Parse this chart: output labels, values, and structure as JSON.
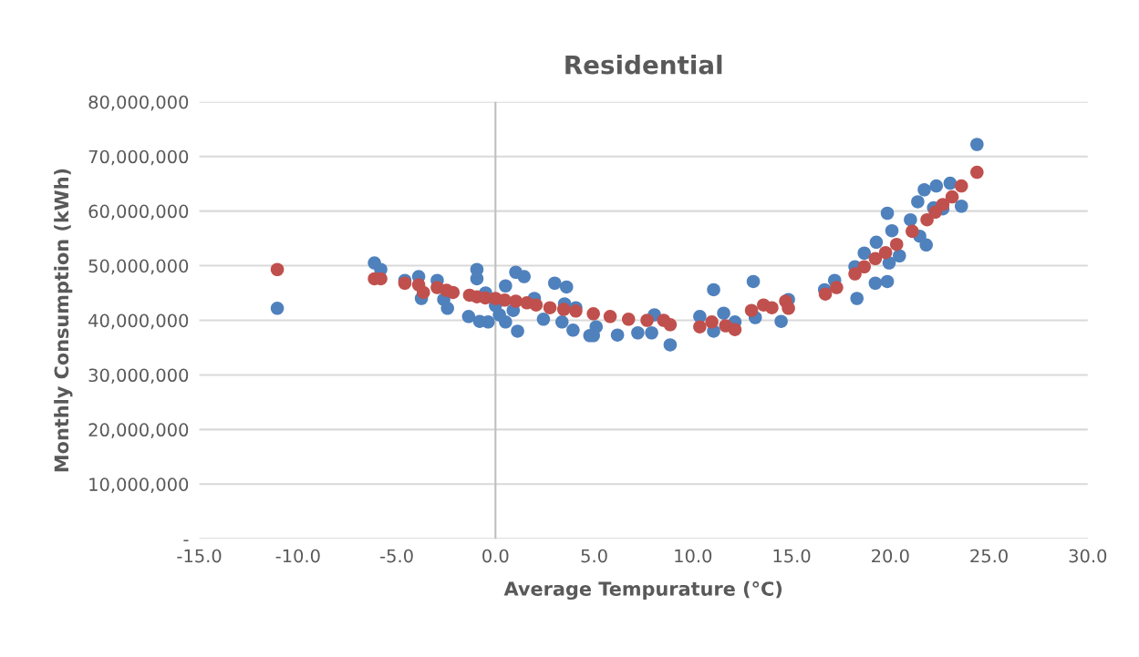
{
  "chart_data": {
    "type": "scatter",
    "title": "Residential",
    "xlabel": "Average Tempurature (°C)",
    "ylabel": "Monthly Consumption (kWh)",
    "xlim": [
      -15,
      30
    ],
    "ylim": [
      0,
      80000000
    ],
    "xticks": [
      {
        "value": -15,
        "label": "-15.0"
      },
      {
        "value": -10,
        "label": "-10.0"
      },
      {
        "value": -5,
        "label": "-5.0"
      },
      {
        "value": 0,
        "label": "0.0"
      },
      {
        "value": 5,
        "label": "5.0"
      },
      {
        "value": 10,
        "label": "10.0"
      },
      {
        "value": 15,
        "label": "15.0"
      },
      {
        "value": 20,
        "label": "20.0"
      },
      {
        "value": 25,
        "label": "25.0"
      },
      {
        "value": 30,
        "label": "30.0"
      }
    ],
    "yticks": [
      {
        "value": 0,
        "label": "-"
      },
      {
        "value": 10000000,
        "label": "10,000,000"
      },
      {
        "value": 20000000,
        "label": "20,000,000"
      },
      {
        "value": 30000000,
        "label": "30,000,000"
      },
      {
        "value": 40000000,
        "label": "40,000,000"
      },
      {
        "value": 50000000,
        "label": "50,000,000"
      },
      {
        "value": 60000000,
        "label": "60,000,000"
      },
      {
        "value": 70000000,
        "label": "70,000,000"
      },
      {
        "value": 80000000,
        "label": "80,000,000"
      }
    ],
    "grid": "y",
    "marker": "circle",
    "ref_lines": [
      {
        "axis": "x",
        "value": 0,
        "color": "#bfbfbf"
      }
    ],
    "series": [
      {
        "color": "#4f81bd",
        "x": [
          -11.05,
          -6.13,
          -5.81,
          -4.59,
          -3.89,
          -3.75,
          -2.95,
          -2.62,
          -2.43,
          -1.36,
          -0.94,
          -0.94,
          -0.8,
          -0.37,
          0.51,
          0.51,
          1.03,
          1.45,
          1.12,
          1.97,
          2.43,
          3.0,
          3.6,
          3.37,
          3.93,
          4.78,
          0.0,
          0.2,
          0.9,
          3.5,
          -0.5,
          4.07,
          4.96,
          5.1,
          6.18,
          7.21,
          7.91,
          8.05,
          8.85,
          11.05,
          10.35,
          11.05,
          11.56,
          12.13,
          13.06,
          13.16,
          14.47,
          14.84,
          24.39,
          17.18,
          16.67,
          18.31,
          18.21,
          19.24,
          19.85,
          18.68,
          19.29,
          19.85,
          20.08,
          20.46,
          19.94,
          21.02,
          21.39,
          21.72,
          22.33,
          23.03,
          23.6,
          21.82,
          21.49,
          22.66,
          22.19
        ],
        "values": [
          42200000,
          50500000,
          49300000,
          47300000,
          48000000,
          44000000,
          47300000,
          43800000,
          42200000,
          40700000,
          49300000,
          47600000,
          39800000,
          39700000,
          46300000,
          39700000,
          48800000,
          48000000,
          38000000,
          44000000,
          40200000,
          46800000,
          46100000,
          39700000,
          38200000,
          37200000,
          42700000,
          41000000,
          41800000,
          43000000,
          45000000,
          42300000,
          37200000,
          38800000,
          37300000,
          37700000,
          37700000,
          41000000,
          35500000,
          45600000,
          40700000,
          38000000,
          41300000,
          39700000,
          47100000,
          40500000,
          39800000,
          43800000,
          72200000,
          47300000,
          45600000,
          44000000,
          49800000,
          46800000,
          47100000,
          52300000,
          54300000,
          59600000,
          56400000,
          51800000,
          50500000,
          58400000,
          61700000,
          63900000,
          64600000,
          65100000,
          60900000,
          53800000,
          55400000,
          60400000,
          60600000
        ]
      },
      {
        "color": "#c0504d",
        "x": [
          -11.05,
          -6.13,
          -5.81,
          -4.59,
          -3.89,
          -3.65,
          -2.95,
          -2.48,
          -2.15,
          -1.31,
          -0.94,
          -0.51,
          0.0,
          0.47,
          1.03,
          1.59,
          2.06,
          2.76,
          3.46,
          4.07,
          4.96,
          5.81,
          6.74,
          7.68,
          8.52,
          8.85,
          10.35,
          10.96,
          11.66,
          12.13,
          12.97,
          13.58,
          14.0,
          14.7,
          14.84,
          16.71,
          17.28,
          18.21,
          18.68,
          19.24,
          19.76,
          20.32,
          21.11,
          21.86,
          22.28,
          22.66,
          23.13,
          23.6,
          24.39
        ],
        "values": [
          49300000,
          47600000,
          47600000,
          46800000,
          46500000,
          45100000,
          46000000,
          45500000,
          45100000,
          44600000,
          44300000,
          44100000,
          44000000,
          43700000,
          43500000,
          43200000,
          42800000,
          42300000,
          42000000,
          41700000,
          41200000,
          40700000,
          40200000,
          40000000,
          40000000,
          39200000,
          38800000,
          39700000,
          39000000,
          38300000,
          41800000,
          42800000,
          42300000,
          43500000,
          42200000,
          44800000,
          46000000,
          48500000,
          49800000,
          51300000,
          52400000,
          53900000,
          56300000,
          58400000,
          59800000,
          61200000,
          62600000,
          64600000,
          67100000
        ]
      }
    ]
  }
}
